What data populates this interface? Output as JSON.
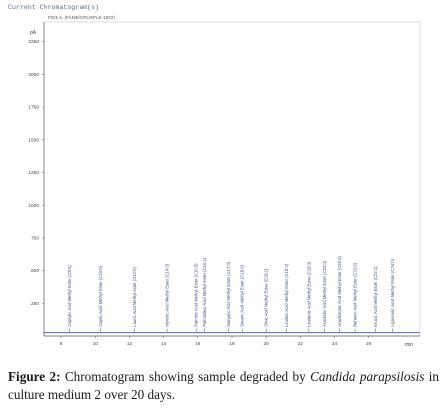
{
  "window_title": "Current Chromatogram(s)",
  "detector_label": "FID1 A, (FAME/CRUSPLE-1972)",
  "chart_data": {
    "type": "line",
    "xlabel": "min",
    "ylabel": "pA",
    "xlim": [
      7,
      29
    ],
    "ylim": [
      0,
      2400
    ],
    "x_ticks": [
      8,
      10,
      12,
      14,
      16,
      18,
      20,
      22,
      24,
      26
    ],
    "y_ticks": [
      250,
      500,
      750,
      1000,
      1250,
      1500,
      1750,
      2000,
      2250
    ],
    "baseline": 25,
    "series": [
      {
        "values": [
          [
            7,
            25
          ],
          [
            29,
            25
          ]
        ]
      }
    ],
    "peaks": [
      {
        "label": "Caprylic Acid Methyl Ester (C8:0)",
        "x": 8.5
      },
      {
        "label": "Capric Acid Methyl Ester (C10:0)",
        "x": 10.3
      },
      {
        "label": "Lauric Acid Methyl ester (C12:0)",
        "x": 12.3
      },
      {
        "label": "Myristic Acid Methyl Ester (C14:0)",
        "x": 14.2
      },
      {
        "label": "Palmitic Acid Methyl Ester (C16:0)",
        "x": 15.9
      },
      {
        "label": "Palmitoleic Acid Methyl Ester (C16:1)",
        "x": 16.4
      },
      {
        "label": "Margaric Acid Methyl Ester (C17:0)",
        "x": 17.8
      },
      {
        "label": "Stearic Acid Methyl Ester (C18:0)",
        "x": 18.6
      },
      {
        "label": "Oleic Acid Methyl Ester (C18:1)",
        "x": 20.0
      },
      {
        "label": "Linoleic Acid Methyl Ester (C18:2)",
        "x": 21.2
      },
      {
        "label": "Linolenic Acid Methyl Ester (C18:3)",
        "x": 22.5
      },
      {
        "label": "Arachidic Acid Methyl Ester (C20:0)",
        "x": 23.4
      },
      {
        "label": "Arachidonic Acid Methyl Ester (C20:4)",
        "x": 24.3
      },
      {
        "label": "Behenic Acid Methyl Ester (C22:0)",
        "x": 25.2
      },
      {
        "label": "Erucic Acid Methyl Ester (C22:1)",
        "x": 26.4
      },
      {
        "label": "Lignoceric Acid Methyl Ester (C24:0)",
        "x": 27.4
      }
    ]
  },
  "caption": {
    "label": "Figure 2:",
    "text_before": " Chromatogram showing sample degraded by ",
    "organism": "Candida parapsilosis",
    "text_after": " in culture medium 2 over 20 days."
  }
}
